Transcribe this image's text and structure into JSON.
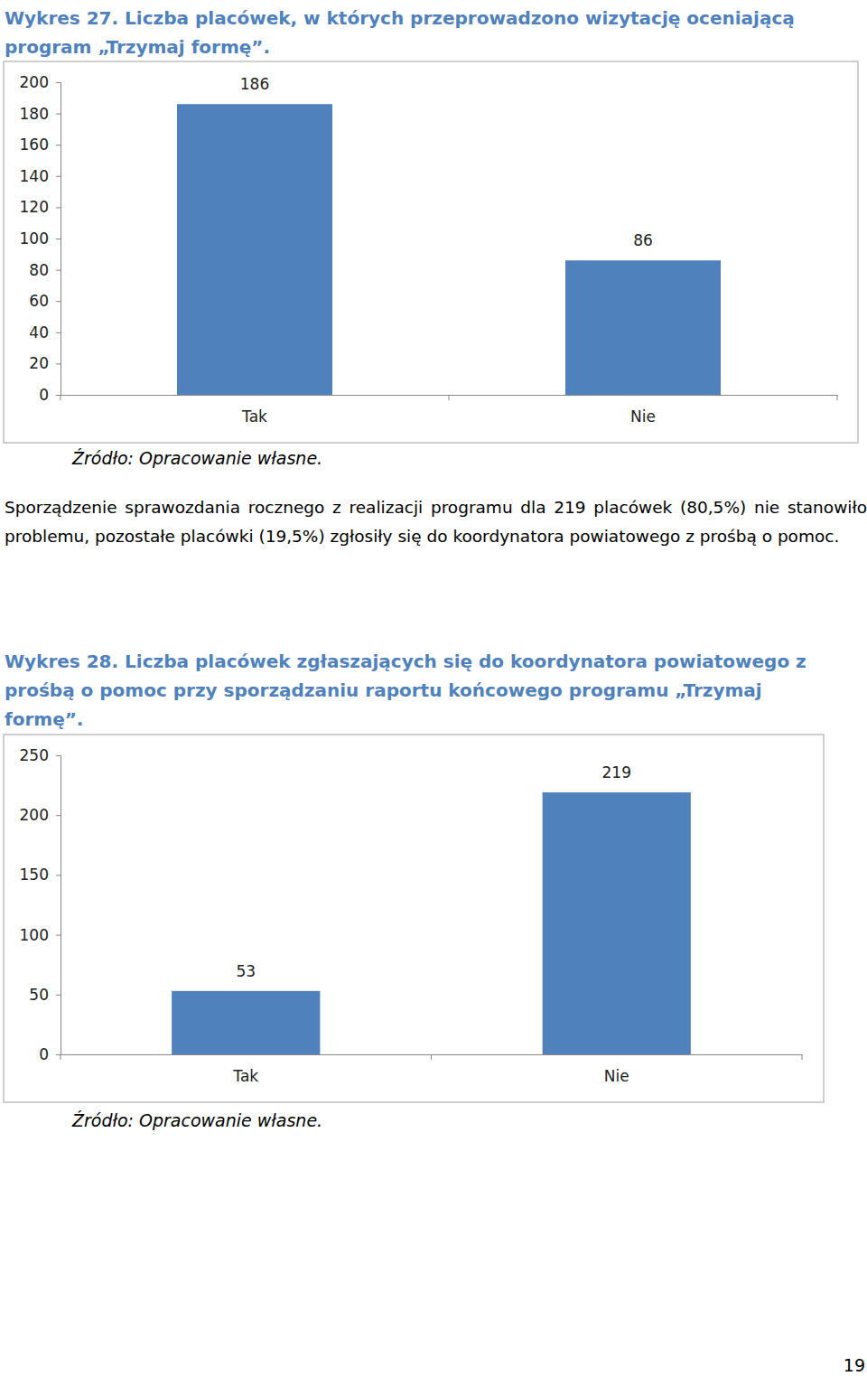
{
  "chart_data": [
    {
      "type": "bar",
      "title": "Wykres  27. Liczba placówek, w których przeprowadzono wizytację oceniającą program „Trzymaj formę”.",
      "categories": [
        "Tak",
        "Nie"
      ],
      "values": [
        186,
        86
      ],
      "color": "#4f81bd",
      "ylim": [
        0,
        200
      ],
      "yticks": [
        0,
        20,
        40,
        60,
        80,
        100,
        120,
        140,
        160,
        180,
        200
      ],
      "grid": false,
      "data_labels": true,
      "annotations": [
        "Źródło: Opracowanie własne."
      ]
    },
    {
      "type": "bar",
      "title": "Wykres  28. Liczba placówek zgłaszających się do koordynatora powiatowego z prośbą o pomoc przy sporządzaniu raportu końcowego programu „Trzymaj formę”.",
      "categories": [
        "Tak",
        "Nie"
      ],
      "values": [
        53,
        219
      ],
      "color": "#4f81bd",
      "ylim": [
        0,
        250
      ],
      "yticks": [
        0,
        50,
        100,
        150,
        200,
        250
      ],
      "grid": false,
      "data_labels": true,
      "annotations": [
        "Źródło: Opracowanie własne."
      ]
    }
  ],
  "document": {
    "paragraph": "Sporządzenie sprawozdania rocznego z realizacji programu dla 219 placówek (80,5%) nie stanowiło problemu, pozostałe placówki (19,5%) zgłosiły się do koordynatora powiatowego z prośbą o pomoc.",
    "page_number": "19"
  }
}
